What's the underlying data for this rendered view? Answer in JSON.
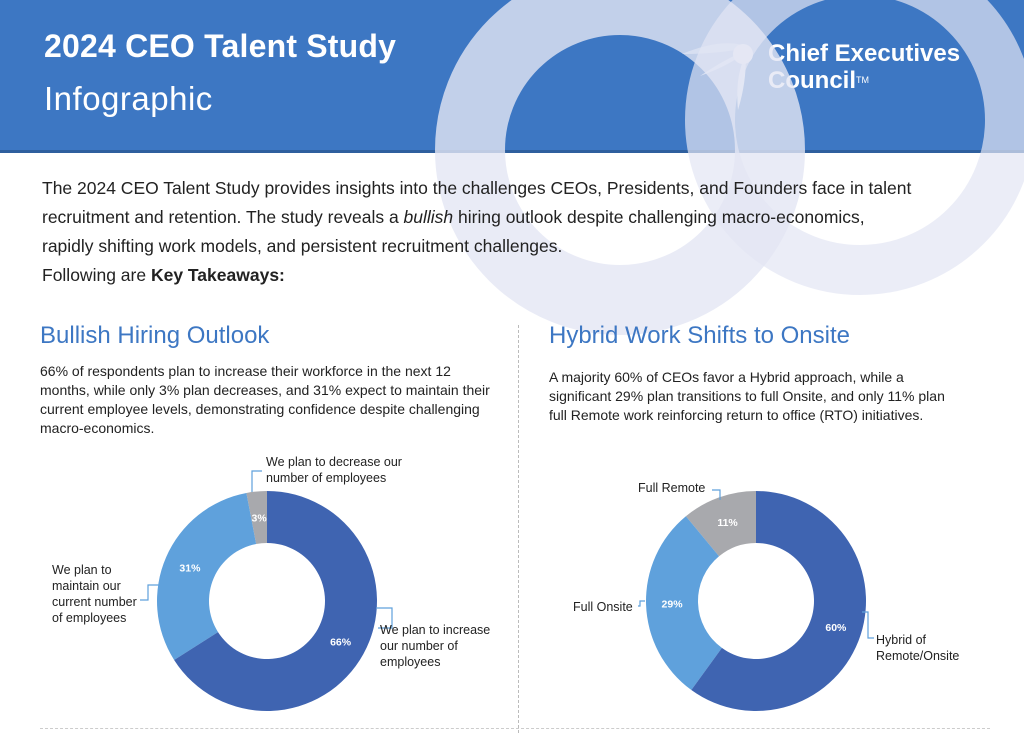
{
  "header": {
    "title": "2024 CEO Talent Study",
    "subtitle": "Infographic",
    "logo_line1": "Chief Executives",
    "logo_line2": "Council",
    "logo_tm": "TM",
    "color": "#3d77c3"
  },
  "intro": {
    "line1": "The 2024 CEO Talent Study provides insights into the challenges CEOs, Presidents, and Founders face in talent",
    "line2_a": "recruitment and retention. The study reveals a ",
    "line2_em": "bullish",
    "line2_b": " hiring outlook despite challenging macro-economics,",
    "line3": "rapidly shifting work models, and persistent recruitment challenges.",
    "line4_a": "Following are ",
    "line4_strong": "Key Takeaways:"
  },
  "left": {
    "title": "Bullish Hiring Outlook",
    "text": "66% of respondents plan to increase their workforce in the next 12 months, while only 3% plan decreases, and 31% expect to maintain their current employee levels, demonstrating confidence despite challenging macro-economics."
  },
  "right": {
    "title": "Hybrid Work Shifts to Onsite",
    "text": "A majority 60% of CEOs favor a Hybrid approach, while a significant 29% plan transitions to full Onsite, and only 11% plan full Remote work reinforcing return to office (RTO) initiatives."
  },
  "chart_data": [
    {
      "type": "pie",
      "title": "",
      "categories": [
        "We plan to increase our number of employees",
        "We plan to maintain our current number of employees",
        "We plan to decrease our number of employees"
      ],
      "values": [
        66,
        31,
        3
      ],
      "data_labels": [
        "66%",
        "31%",
        "3%"
      ],
      "colors": [
        "#3f64b1",
        "#5fa1dc",
        "#a8a9ad"
      ],
      "donut": true
    },
    {
      "type": "pie",
      "title": "",
      "categories": [
        "Hybrid of Remote/Onsite",
        "Full Onsite",
        "Full Remote"
      ],
      "values": [
        60,
        29,
        11
      ],
      "data_labels": [
        "60%",
        "29%",
        "11%"
      ],
      "colors": [
        "#3f64b1",
        "#5fa1dc",
        "#a8a9ad"
      ],
      "donut": true
    }
  ]
}
